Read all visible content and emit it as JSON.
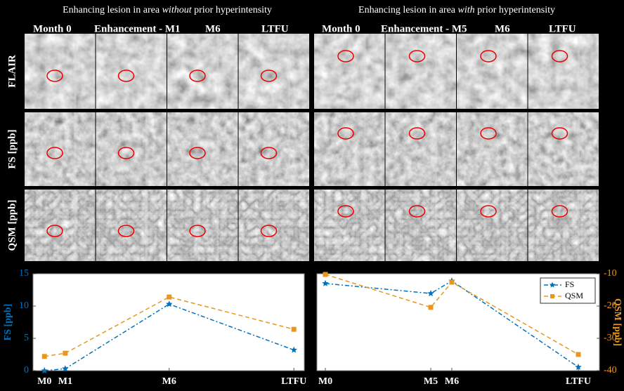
{
  "figure": {
    "titles": [
      {
        "parts": [
          "Enhancing lesion in area ",
          "without",
          " prior hyperintensity"
        ]
      },
      {
        "parts": [
          "Enhancing lesion in area ",
          "with",
          " prior hyperintensity"
        ]
      }
    ],
    "column_labels": [
      [
        "Month 0",
        "Enhancement - M1",
        "M6",
        "LTFU"
      ],
      [
        "Month 0",
        "Enhancement - M5",
        "M6",
        "LTFU"
      ]
    ],
    "row_labels": [
      "FLAIR",
      "FS [ppb]",
      "QSM [ppb]"
    ]
  },
  "chart_data": [
    {
      "type": "line",
      "ylabel": "FS [ppb]",
      "ylabel_color": "#0072bd",
      "x": [
        0,
        1,
        6,
        12
      ],
      "xlim": [
        -0.55,
        12.5
      ],
      "xticks": [
        {
          "value": 0,
          "label": "M0"
        },
        {
          "value": 1,
          "label": "M1"
        },
        {
          "value": 6,
          "label": "M6"
        },
        {
          "value": 12,
          "label": "LTFU"
        }
      ],
      "ylim": [
        0,
        15
      ],
      "yticks": [
        0,
        5,
        10,
        15
      ],
      "series": [
        {
          "color": "#0072bd",
          "marker": "star",
          "values": [
            0,
            0.3,
            10.3,
            3.2
          ]
        },
        {
          "color": "#e8961e",
          "marker": "square",
          "values": [
            2.2,
            2.7,
            11.4,
            6.4
          ]
        }
      ]
    },
    {
      "type": "line",
      "y2label": "QSM [ppb]",
      "y2label_color": "#e8961e",
      "x": [
        0,
        5,
        6,
        12
      ],
      "xlim": [
        -0.4,
        13
      ],
      "xticks": [
        {
          "value": 0,
          "label": "M0"
        },
        {
          "value": 5,
          "label": "M5"
        },
        {
          "value": 6,
          "label": "M6"
        },
        {
          "value": 12,
          "label": "LTFU"
        }
      ],
      "y2lim": [
        -40,
        -10
      ],
      "y2ticks": [
        -10,
        -20,
        -30,
        -40
      ],
      "legend": "upper right",
      "series": [
        {
          "name": "FS",
          "color": "#0072bd",
          "marker": "star",
          "axis": "y2",
          "values": [
            -13.0,
            -16.1,
            -12.2,
            -38.9
          ]
        },
        {
          "name": "QSM",
          "color": "#e8961e",
          "marker": "square",
          "axis": "y2",
          "values": [
            -10.2,
            -20.4,
            -12.6,
            -35.0
          ]
        }
      ]
    }
  ]
}
